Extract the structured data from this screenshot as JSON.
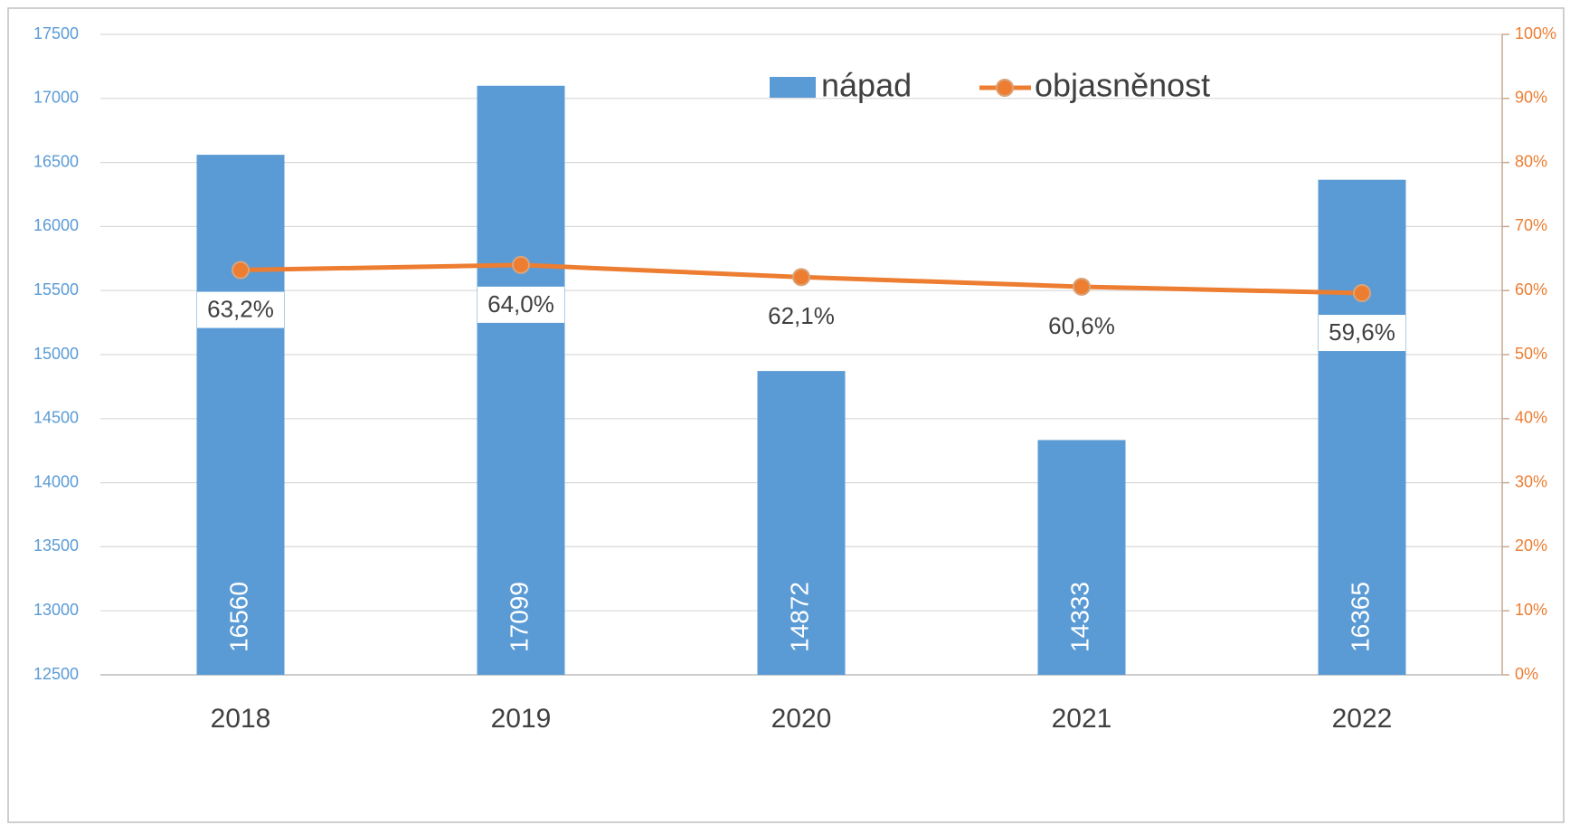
{
  "chart_data": {
    "type": "bar",
    "categories": [
      "2018",
      "2019",
      "2020",
      "2021",
      "2022"
    ],
    "series": [
      {
        "name": "nápad",
        "type": "bar",
        "color": "#5b9bd5",
        "values": [
          16560,
          17099,
          14872,
          14333,
          16365
        ]
      },
      {
        "name": "objasněnost",
        "type": "line",
        "axis": "y2",
        "color": "#ed7d31",
        "values": [
          63.2,
          64.0,
          62.1,
          60.6,
          59.6
        ],
        "value_labels": [
          "63,2%",
          "64,0%",
          "62,1%",
          "60,6%",
          "59,6%"
        ]
      }
    ],
    "ylim": [
      12500,
      17500
    ],
    "yticks": [
      12500,
      13000,
      13500,
      14000,
      14500,
      15000,
      15500,
      16000,
      16500,
      17000,
      17500
    ],
    "y2lim": [
      0,
      100
    ],
    "y2ticks": [
      {
        "value": 0,
        "label": "0%"
      },
      {
        "value": 10,
        "label": "10%"
      },
      {
        "value": 20,
        "label": "20%"
      },
      {
        "value": 30,
        "label": "30%"
      },
      {
        "value": 40,
        "label": "40%"
      },
      {
        "value": 50,
        "label": "50%"
      },
      {
        "value": 60,
        "label": "60%"
      },
      {
        "value": 70,
        "label": "70%"
      },
      {
        "value": 80,
        "label": "80%"
      },
      {
        "value": 90,
        "label": "90%"
      },
      {
        "value": 100,
        "label": "100%"
      }
    ],
    "grid": true,
    "legend": "top"
  }
}
